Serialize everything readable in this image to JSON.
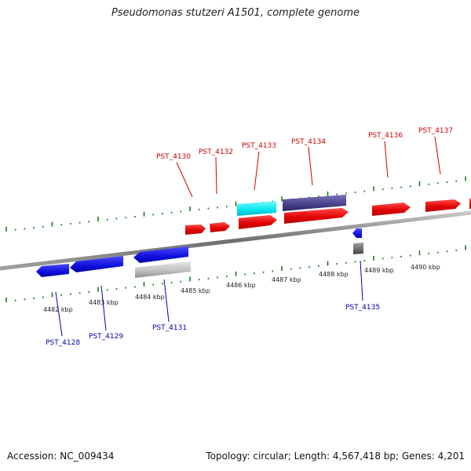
{
  "title": "Pseudomonas stutzeri A1501, complete genome",
  "footer": {
    "accession": "Accession: NC_009434",
    "summary": "Topology: circular; Length: 4,567,418 bp; Genes: 4,201"
  },
  "colors": {
    "forward_gene": "#ee0000",
    "reverse_gene": "#1010dd",
    "forward_label": "#cc0000",
    "reverse_label": "#0000aa",
    "tick": "#1a7a1a",
    "backbone": "#8a8a8a",
    "cyan_feature": "#00e5ee",
    "navy_feature": "#48408a",
    "gray_feature": "#bdbdbd",
    "darkgray_feature": "#777777"
  },
  "scale": {
    "unit": "kbp",
    "ticks": [
      "4482 kbp",
      "4483 kbp",
      "4484 kbp",
      "4485 kbp",
      "4486 kbp",
      "4487 kbp",
      "4488 kbp",
      "4489 kbp",
      "4490 kbp"
    ]
  },
  "forward_labels": [
    "PST_4130",
    "PST_4132",
    "PST_4133",
    "PST_4134",
    "PST_4136",
    "PST_4137"
  ],
  "reverse_labels": [
    "PST_4128",
    "PST_4129",
    "PST_4131",
    "PST_4135"
  ]
}
